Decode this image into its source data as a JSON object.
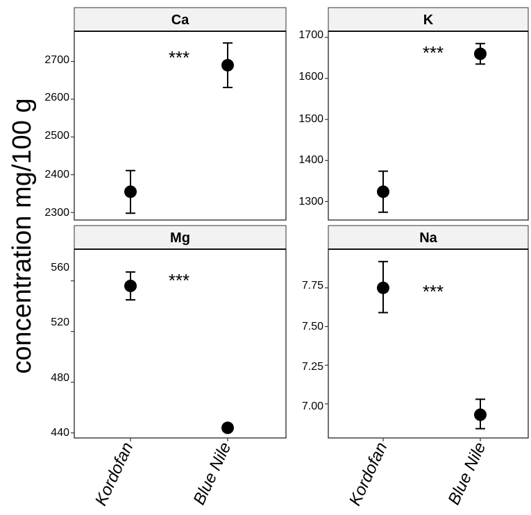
{
  "ylabel": "concentration mg/100 g",
  "chart_data": [
    {
      "type": "scatter",
      "title": "Ca",
      "categories": [
        "Kordofan",
        "Blue Nile"
      ],
      "values": [
        2355,
        2690
      ],
      "error": [
        [
          2298,
          2411
        ],
        [
          2631,
          2749
        ]
      ],
      "ylim": [
        2280,
        2780
      ],
      "yticks": [
        2300,
        2400,
        2500,
        2600,
        2700
      ],
      "annotation": "***"
    },
    {
      "type": "scatter",
      "title": "K",
      "categories": [
        "Kordofan",
        "Blue Nile"
      ],
      "values": [
        1324,
        1660
      ],
      "error": [
        [
          1274,
          1374
        ],
        [
          1635,
          1685
        ]
      ],
      "ylim": [
        1255,
        1715
      ],
      "yticks": [
        1300,
        1400,
        1500,
        1600,
        1700
      ],
      "annotation": "***"
    },
    {
      "type": "scatter",
      "title": "Mg",
      "categories": [
        "Kordofan",
        "Blue Nile"
      ],
      "values": [
        556,
        444
      ],
      "error": [
        [
          545,
          567
        ],
        [
          442,
          446
        ]
      ],
      "ylim": [
        436,
        585
      ],
      "yticks": [
        440,
        480,
        520,
        560
      ],
      "annotation": "***"
    },
    {
      "type": "scatter",
      "title": "Na",
      "categories": [
        "Kordofan",
        "Blue Nile"
      ],
      "values": [
        7.75,
        6.93
      ],
      "error": [
        [
          7.59,
          7.92
        ],
        [
          6.84,
          7.03
        ]
      ],
      "ylim": [
        6.78,
        8.0
      ],
      "yticks": [
        7.0,
        7.25,
        7.5,
        7.75
      ],
      "annotation": "***"
    }
  ]
}
